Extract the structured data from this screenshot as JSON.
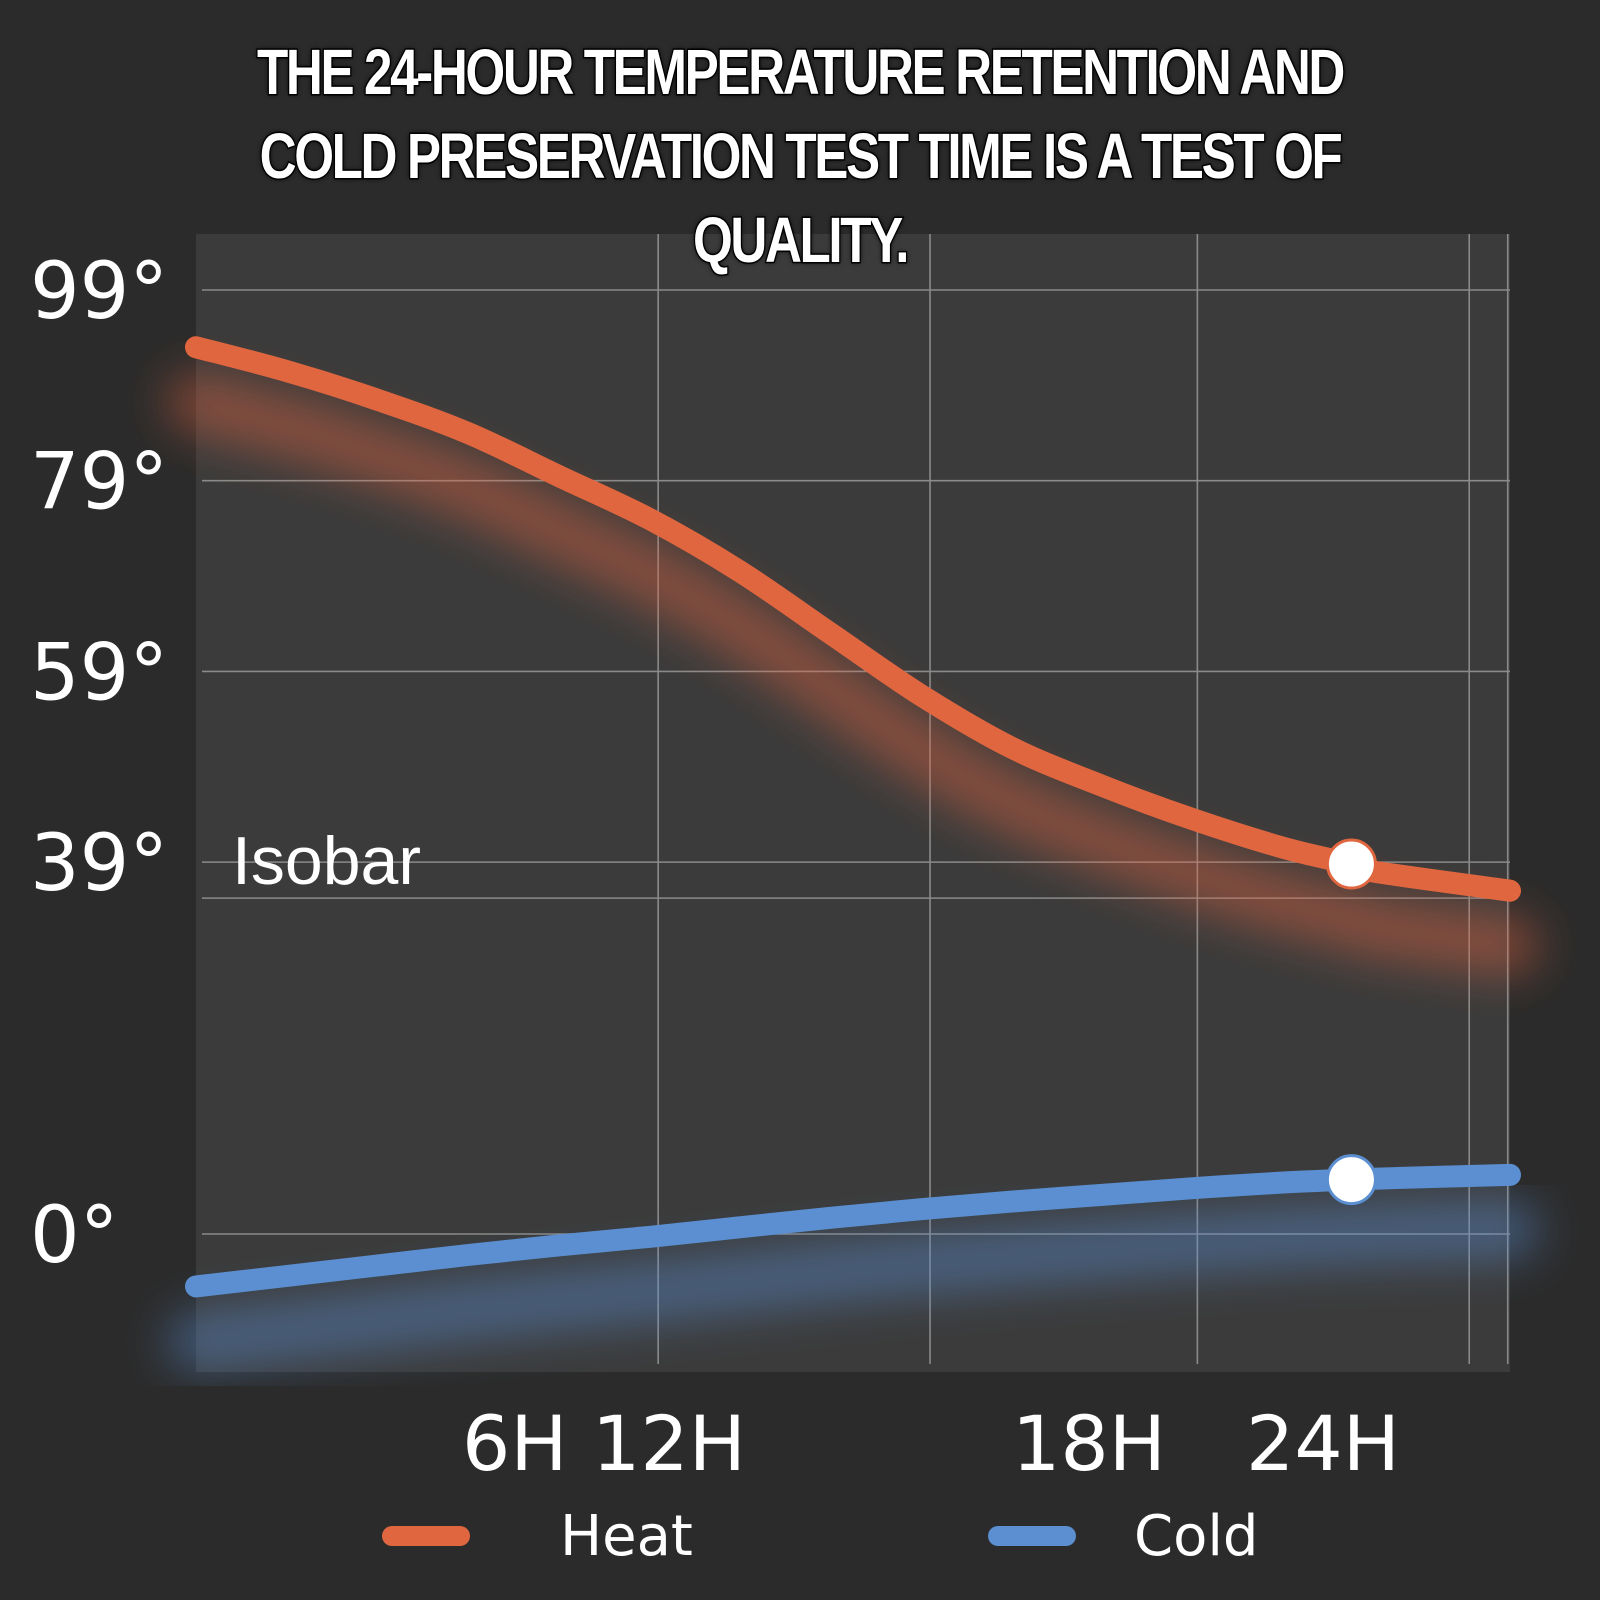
{
  "title": {
    "line1": "THE 24-HOUR TEMPERATURE RETENTION AND",
    "line2": "COLD PRESERVATION TEST TIME IS A TEST OF QUALITY."
  },
  "chart_data": {
    "type": "line",
    "title": "THE 24-HOUR TEMPERATURE RETENTION AND COLD PRESERVATION TEST TIME IS A TEST OF QUALITY.",
    "xlabel": "",
    "ylabel": "",
    "x_ticks": [
      "6H",
      "12H",
      "18H",
      "24H"
    ],
    "x_tick_values": [
      6,
      12,
      18,
      24
    ],
    "y_ticks": [
      "0°",
      "39°",
      "59°",
      "79°",
      "99°"
    ],
    "y_tick_values": [
      0,
      39,
      59,
      79,
      99
    ],
    "xlim": [
      0,
      29
    ],
    "annotation": "Isobar",
    "grid": true,
    "legend_position": "bottom",
    "series": [
      {
        "name": "Heat",
        "color": "#e0663f",
        "x": [
          0,
          2,
          4,
          6,
          8,
          10,
          12,
          14,
          16,
          18,
          20,
          22,
          24,
          25.5,
          26,
          29
        ],
        "y": [
          93,
          90.5,
          87.5,
          84,
          79.5,
          75,
          69.5,
          63,
          56.5,
          51,
          47,
          43.5,
          40.5,
          38.8,
          38,
          36
        ],
        "marker": {
          "x": 25.5,
          "y": 38.8
        }
      },
      {
        "name": "Cold",
        "color": "#5b8fd1",
        "x": [
          0,
          2,
          4,
          6,
          8,
          10,
          12,
          14,
          16,
          18,
          20,
          22,
          24,
          25.5,
          26,
          29
        ],
        "y": [
          -5.5,
          -4.4,
          -3.3,
          -2.2,
          -1.2,
          -0.3,
          0.7,
          1.7,
          2.6,
          3.4,
          4.1,
          4.8,
          5.4,
          5.7,
          5.8,
          6.2
        ],
        "marker": {
          "x": 25.5,
          "y": 5.7
        }
      }
    ]
  }
}
